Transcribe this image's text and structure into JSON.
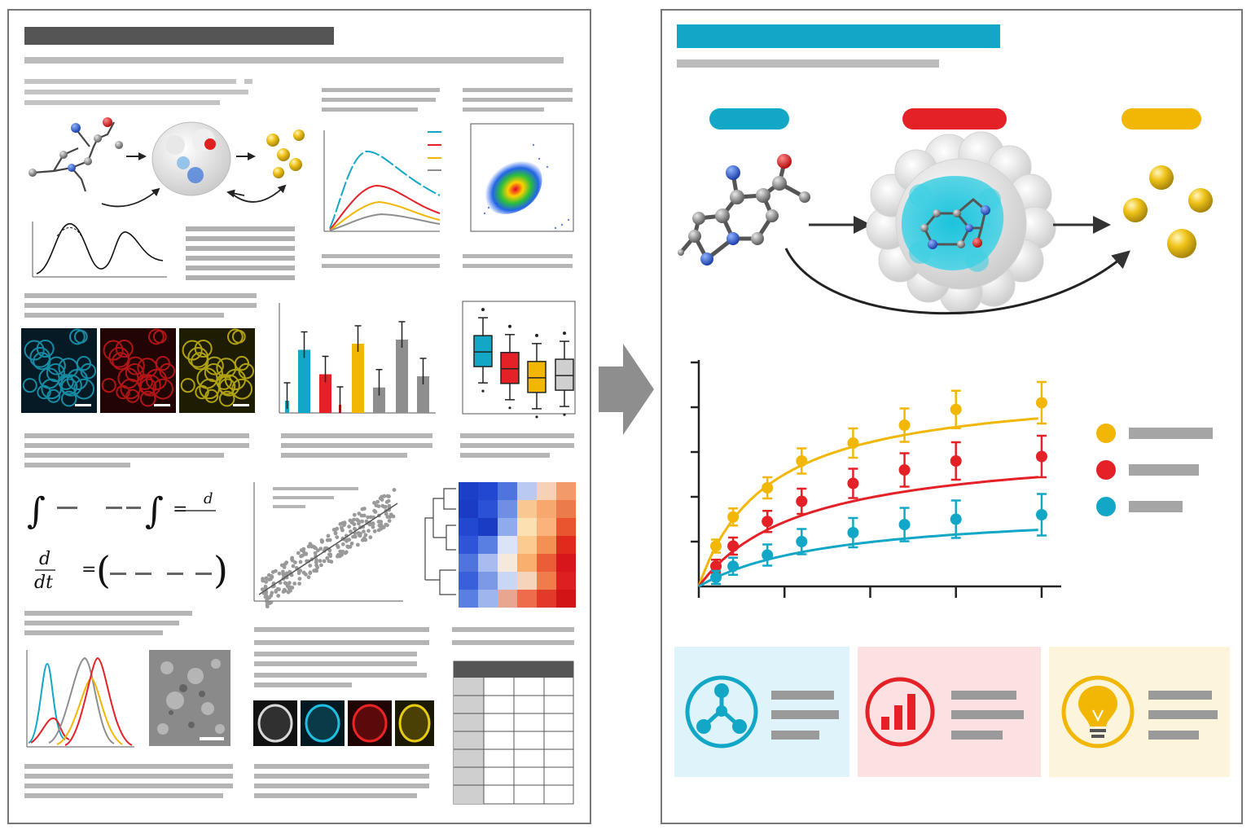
{
  "colors": {
    "cyan": "#12a7c7",
    "red": "#e42126",
    "yellow": "#f2b705",
    "gray": "#8e8e8e",
    "dark": "#4a4a4a",
    "panel_border": "#777777",
    "card_cyan": "#dff4fa",
    "card_red": "#fbe1e1",
    "card_yellow": "#fcf5dc"
  },
  "left_panel": {
    "imaging_channels": [
      "cyan",
      "red",
      "yellow"
    ],
    "single_cell_channels": [
      "gray",
      "cyan",
      "red",
      "yellow"
    ],
    "bar_chart_values": [
      0.12,
      0.62,
      0.38,
      0.08,
      0.68,
      0.25,
      0.72,
      0.36
    ],
    "boxplot_medians": [
      0.55,
      0.4,
      0.32,
      0.34
    ],
    "equations": {
      "integral": "∫",
      "equals": "=",
      "derivative_top": "d",
      "derivative_bottom": "dt",
      "paren_open": "(",
      "paren_close": ")"
    }
  },
  "arrow_icon": "right-arrow-icon",
  "right_panel": {
    "stages": [
      {
        "color": "cyan",
        "icon": "small-molecule-icon"
      },
      {
        "color": "red",
        "icon": "protein-binding-pocket-icon"
      },
      {
        "color": "yellow",
        "icon": "product-particles-icon"
      }
    ],
    "chart_data": {
      "type": "line",
      "title": "",
      "xlabel": "",
      "ylabel": "",
      "x": [
        1,
        2,
        4,
        6,
        9,
        12,
        15,
        20
      ],
      "series": [
        {
          "color": "yellow",
          "values": [
            0.9,
            1.55,
            2.2,
            2.8,
            3.2,
            3.6,
            3.95,
            4.1
          ]
        },
        {
          "color": "red",
          "values": [
            0.45,
            0.9,
            1.45,
            1.9,
            2.3,
            2.6,
            2.8,
            2.9
          ]
        },
        {
          "color": "cyan",
          "values": [
            0.2,
            0.45,
            0.7,
            1.0,
            1.2,
            1.38,
            1.5,
            1.6
          ]
        }
      ],
      "xlim": [
        0,
        21
      ],
      "ylim": [
        0,
        5
      ]
    },
    "summary_cards": [
      {
        "color": "cyan",
        "icon": "network-node-icon"
      },
      {
        "color": "red",
        "icon": "bar-chart-icon"
      },
      {
        "color": "yellow",
        "icon": "lightbulb-icon"
      }
    ]
  }
}
